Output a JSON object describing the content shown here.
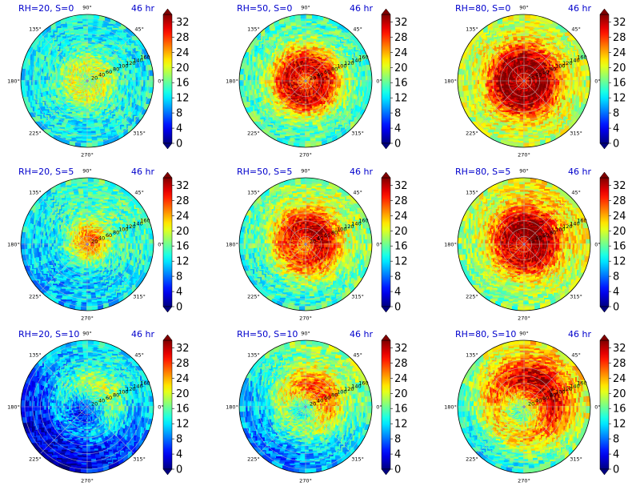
{
  "chart_data": {
    "type": "heatmap",
    "projection": "polar",
    "layout": "3x3 grid",
    "angle_ticks": [
      "0°",
      "45°",
      "90°",
      "135°",
      "180°",
      "225°",
      "270°",
      "315°"
    ],
    "radial_ticks": [
      20,
      40,
      60,
      80,
      100,
      120,
      140,
      160
    ],
    "radial_max": 170,
    "colorbar": {
      "colormap": "jet",
      "min": 0,
      "max": 34,
      "ticks": [
        0,
        4,
        8,
        12,
        16,
        20,
        24,
        28,
        32
      ],
      "extend": "both"
    },
    "panels": [
      {
        "title": "RH=20, S=0",
        "time": "46 hr",
        "rh": 20,
        "shear": 0,
        "peak_value": 20,
        "peak_radius": 40,
        "background": 13
      },
      {
        "title": "RH=50, S=0",
        "time": "46 hr",
        "rh": 50,
        "shear": 0,
        "peak_value": 31,
        "peak_radius": 45,
        "background": 15
      },
      {
        "title": "RH=80, S=0",
        "time": "46 hr",
        "rh": 80,
        "shear": 0,
        "peak_value": 34,
        "peak_radius": 45,
        "background": 19
      },
      {
        "title": "RH=20, S=5",
        "time": "46 hr",
        "rh": 20,
        "shear": 5,
        "peak_value": 25,
        "peak_radius": 12,
        "background": 13
      },
      {
        "title": "RH=50, S=5",
        "time": "46 hr",
        "rh": 50,
        "shear": 5,
        "peak_value": 30,
        "peak_radius": 45,
        "background": 16
      },
      {
        "title": "RH=80, S=5",
        "time": "46 hr",
        "rh": 80,
        "shear": 5,
        "peak_value": 33,
        "peak_radius": 42,
        "background": 19
      },
      {
        "title": "RH=20, S=10",
        "time": "46 hr",
        "rh": 20,
        "shear": 10,
        "peak_value": 14,
        "peak_radius": 70,
        "background": 8
      },
      {
        "title": "RH=50, S=10",
        "time": "46 hr",
        "rh": 50,
        "shear": 10,
        "peak_value": 22,
        "peak_radius": 60,
        "background": 13
      },
      {
        "title": "RH=80, S=10",
        "time": "46 hr",
        "rh": 80,
        "shear": 10,
        "peak_value": 27,
        "peak_radius": 80,
        "background": 17
      }
    ]
  }
}
